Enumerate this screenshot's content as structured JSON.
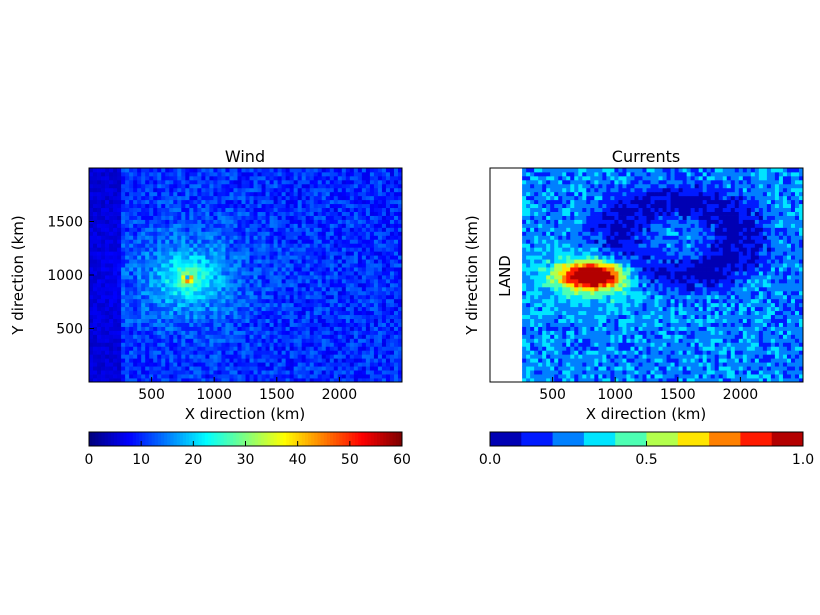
{
  "chart_data": [
    {
      "type": "heatmap",
      "title": "Wind",
      "xlabel": "X direction (km)",
      "ylabel": "Y direction (km)",
      "xlim": [
        0,
        2500
      ],
      "ylim": [
        0,
        2000
      ],
      "xticks": [
        500,
        1000,
        1500,
        2000
      ],
      "yticks": [
        500,
        1000,
        1500
      ],
      "colorbar": {
        "min": 0,
        "max": 60,
        "ticks": [
          0,
          10,
          20,
          30,
          40,
          50,
          60
        ],
        "style": "continuous jet"
      },
      "field": {
        "background_level": 10,
        "peak_center_km": [
          790,
          970
        ],
        "peak_value": 60,
        "core_radius_km": 60,
        "decay_radius_km": 220,
        "left_edge_strip_km": [
          0,
          250
        ],
        "left_edge_strip_level": 5
      }
    },
    {
      "type": "heatmap",
      "title": "Currents",
      "xlabel": "X direction (km)",
      "ylabel": "Y direction (km)",
      "xlim": [
        0,
        2500
      ],
      "ylim": [
        0,
        2000
      ],
      "xticks": [
        500,
        1000,
        1500,
        2000
      ],
      "yticks": [],
      "annotations": [
        {
          "text": "LAND",
          "region_x_km": [
            0,
            250
          ]
        }
      ],
      "colorbar": {
        "min": 0.0,
        "max": 1.0,
        "ticks": [
          "0.0",
          "0.5",
          "1.0"
        ],
        "levels": 10,
        "style": "discrete jet"
      },
      "field": {
        "land_x_km": [
          0,
          250
        ],
        "background_level": 0.25,
        "peak_center_km": [
          820,
          1000
        ],
        "peak_value": 1.0,
        "wake_center_km": [
          1500,
          1350
        ],
        "wake_value": 0.05
      }
    }
  ]
}
